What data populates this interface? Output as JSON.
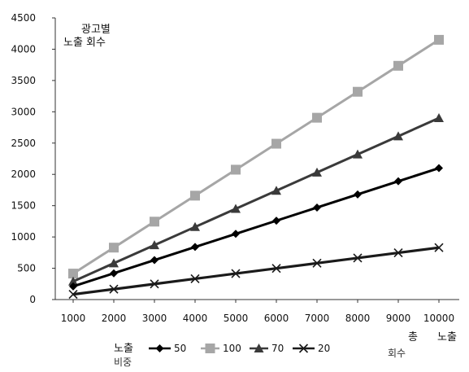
{
  "chart_data": {
    "type": "line",
    "title": "",
    "ylabel": "광고별\n노출 회수",
    "xlabel": "총 노출 회수",
    "x": [
      1000,
      2000,
      3000,
      4000,
      5000,
      6000,
      7000,
      8000,
      9000,
      10000
    ],
    "ylim": [
      0,
      4500
    ],
    "yticks": [
      0,
      500,
      1000,
      1500,
      2000,
      2500,
      3000,
      3500,
      4000,
      4500
    ],
    "grid": false,
    "legend": {
      "title": "노출 비중",
      "position": "bottom"
    },
    "series": [
      {
        "name": "50",
        "color": "#000000",
        "marker": "diamond",
        "values": [
          210,
          420,
          630,
          840,
          1050,
          1260,
          1470,
          1680,
          1890,
          2100
        ]
      },
      {
        "name": "100",
        "color": "#a6a6a6",
        "marker": "square",
        "values": [
          415,
          830,
          1245,
          1660,
          2075,
          2490,
          2905,
          3320,
          3735,
          4150
        ]
      },
      {
        "name": "70",
        "color": "#3a3a3a",
        "marker": "triangle",
        "values": [
          290,
          580,
          870,
          1160,
          1450,
          1740,
          2030,
          2320,
          2610,
          2900
        ]
      },
      {
        "name": "20",
        "color": "#1a1a1a",
        "marker": "x",
        "values": [
          83,
          166,
          249,
          332,
          415,
          498,
          581,
          664,
          747,
          830
        ]
      }
    ]
  }
}
